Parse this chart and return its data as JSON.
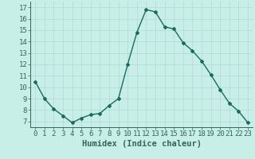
{
  "x": [
    0,
    1,
    2,
    3,
    4,
    5,
    6,
    7,
    8,
    9,
    10,
    11,
    12,
    13,
    14,
    15,
    16,
    17,
    18,
    19,
    20,
    21,
    22,
    23
  ],
  "y": [
    10.5,
    9.0,
    8.1,
    7.5,
    6.9,
    7.3,
    7.6,
    7.7,
    8.4,
    9.0,
    12.0,
    14.8,
    16.8,
    16.6,
    15.3,
    15.1,
    13.9,
    13.2,
    12.3,
    11.1,
    9.8,
    8.6,
    7.9,
    6.9
  ],
  "line_color": "#1a6b5e",
  "marker": "D",
  "marker_size": 2.0,
  "bg_color": "#c8eee8",
  "grid_color": "#b0d8d0",
  "xlabel": "Humidex (Indice chaleur)",
  "ylim": [
    6.5,
    17.5
  ],
  "xlim": [
    -0.5,
    23.5
  ],
  "yticks": [
    7,
    8,
    9,
    10,
    11,
    12,
    13,
    14,
    15,
    16,
    17
  ],
  "xticks": [
    0,
    1,
    2,
    3,
    4,
    5,
    6,
    7,
    8,
    9,
    10,
    11,
    12,
    13,
    14,
    15,
    16,
    17,
    18,
    19,
    20,
    21,
    22,
    23
  ],
  "xlabel_fontsize": 7.5,
  "tick_fontsize": 6.5,
  "linewidth": 1.0
}
